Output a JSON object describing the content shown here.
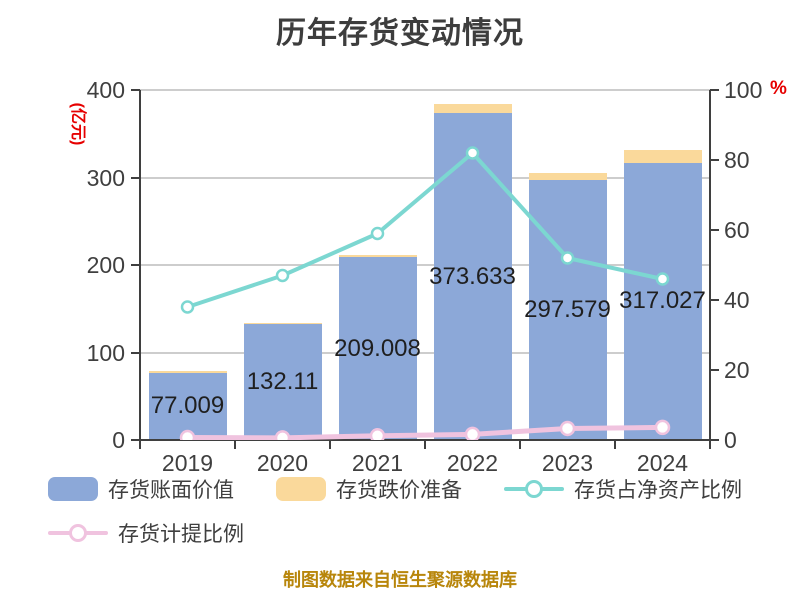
{
  "title": "历年存货变动情况",
  "footer": "制图数据来自恒生聚源数据库",
  "colors": {
    "bar_book_value": "#8ca8d8",
    "bar_provision": "#fad99b",
    "line_net_asset_ratio": "#7cd7d1",
    "line_provision_ratio": "#f0c3df",
    "axis_text": "#3f3f3f",
    "unit_label_red": "#e60000",
    "footer_gold": "#b8860b",
    "gridline": "#cdcdcd"
  },
  "chart_data": {
    "type": "bar",
    "subtype": "stacked bars with two overlay lines (dual axis)",
    "title": "历年存货变动情况",
    "categories": [
      "2019",
      "2020",
      "2021",
      "2022",
      "2023",
      "2024"
    ],
    "series": [
      {
        "name": "存货账面价值",
        "type": "bar",
        "axis": "left",
        "unit": "亿元",
        "color": "#8ca8d8",
        "values": [
          77.009,
          132.11,
          209.008,
          373.633,
          297.579,
          317.027
        ],
        "labels": [
          "77.009",
          "132.11",
          "209.008",
          "373.633",
          "297.579",
          "317.027"
        ]
      },
      {
        "name": "存货跌价准备",
        "type": "bar",
        "axis": "left",
        "unit": "亿元",
        "stacked_on": "存货账面价值",
        "color": "#fad99b",
        "estimated": true,
        "values": [
          2,
          2,
          3,
          10,
          8,
          14
        ]
      },
      {
        "name": "存货占净资产比例",
        "type": "line",
        "axis": "right",
        "unit": "%",
        "color": "#7cd7d1",
        "estimated": true,
        "values": [
          38,
          47,
          59,
          82,
          52,
          46
        ]
      },
      {
        "name": "存货计提比例",
        "type": "line",
        "axis": "right",
        "unit": "%",
        "color": "#f0c3df",
        "estimated": true,
        "values": [
          0.7,
          0.6,
          1.2,
          1.6,
          3.3,
          3.6
        ]
      }
    ],
    "left_axis": {
      "label": "(亿元)",
      "min": 0,
      "max": 400,
      "step": 100,
      "ticks": [
        "0",
        "100",
        "200",
        "300",
        "400"
      ]
    },
    "right_axis": {
      "label": "%",
      "min": 0,
      "max": 100,
      "step": 20,
      "ticks": [
        "0",
        "20",
        "40",
        "60",
        "80",
        "100"
      ]
    },
    "grid": true,
    "legend_position": "bottom-left"
  }
}
